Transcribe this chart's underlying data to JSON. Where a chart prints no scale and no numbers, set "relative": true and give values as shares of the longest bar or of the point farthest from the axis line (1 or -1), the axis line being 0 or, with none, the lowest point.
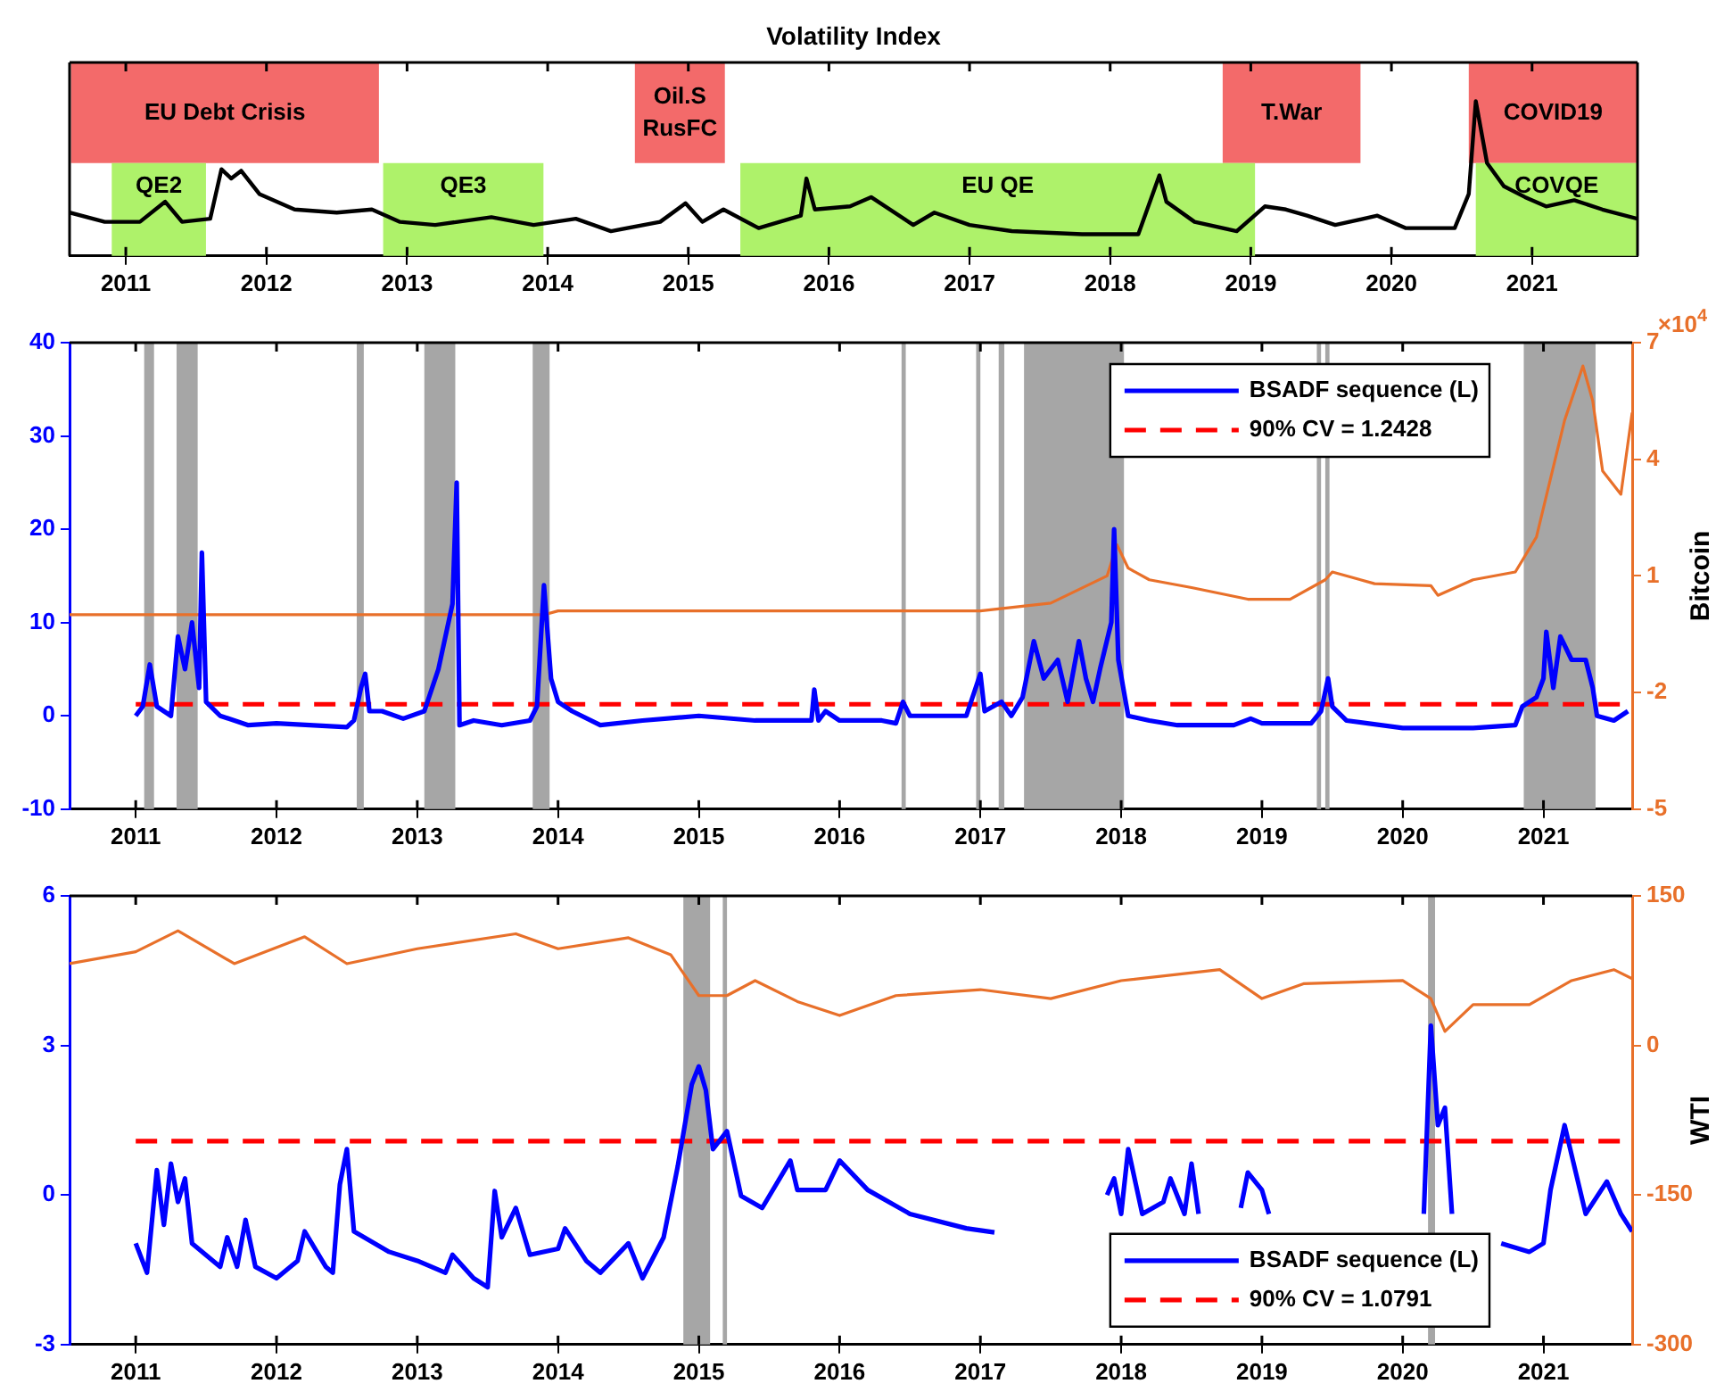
{
  "chart_data": [
    {
      "type": "line",
      "title": "Volatility Index",
      "relative": true,
      "xlim": [
        2010.6,
        2021.75
      ],
      "xticks": [
        2011,
        2012,
        2013,
        2014,
        2015,
        2016,
        2017,
        2018,
        2019,
        2020,
        2021
      ],
      "color": "#000000",
      "x": [
        2010.6,
        2010.85,
        2011.1,
        2011.28,
        2011.4,
        2011.6,
        2011.68,
        2011.75,
        2011.82,
        2011.95,
        2012.2,
        2012.5,
        2012.75,
        2012.95,
        2013.2,
        2013.6,
        2013.9,
        2014.2,
        2014.45,
        2014.8,
        2014.98,
        2015.1,
        2015.25,
        2015.5,
        2015.8,
        2015.84,
        2015.9,
        2016.15,
        2016.3,
        2016.6,
        2016.75,
        2017.0,
        2017.3,
        2017.8,
        2018.2,
        2018.35,
        2018.4,
        2018.6,
        2018.9,
        2019.1,
        2019.25,
        2019.4,
        2019.6,
        2019.9,
        2020.1,
        2020.45,
        2020.55,
        2020.6,
        2020.68,
        2020.8,
        2020.95,
        2021.1,
        2021.3,
        2021.5,
        2021.75
      ],
      "values": [
        0.28,
        0.22,
        0.22,
        0.35,
        0.22,
        0.24,
        0.56,
        0.5,
        0.55,
        0.4,
        0.3,
        0.28,
        0.3,
        0.22,
        0.2,
        0.25,
        0.2,
        0.24,
        0.16,
        0.22,
        0.34,
        0.22,
        0.3,
        0.18,
        0.26,
        0.5,
        0.3,
        0.32,
        0.38,
        0.2,
        0.28,
        0.2,
        0.16,
        0.14,
        0.14,
        0.52,
        0.35,
        0.22,
        0.16,
        0.32,
        0.3,
        0.26,
        0.2,
        0.26,
        0.18,
        0.18,
        0.4,
        1,
        0.6,
        0.45,
        0.38,
        0.32,
        0.36,
        0.3,
        0.24
      ],
      "bands": [
        {
          "axis": "x",
          "from": 2010.61,
          "to": 2012.8,
          "label": "EU Debt Crisis",
          "color": "#f36a6a"
        },
        {
          "axis": "x",
          "from": 2014.62,
          "to": 2015.26,
          "label": "Oil.S RusFC",
          "color": "#f36a6a"
        },
        {
          "axis": "x",
          "from": 2018.8,
          "to": 2019.78,
          "label": "T.War",
          "color": "#f36a6a"
        },
        {
          "axis": "x",
          "from": 2020.55,
          "to": 2021.75,
          "label": "COVID19",
          "color": "#f36a6a"
        },
        {
          "axis": "x",
          "from": 2010.9,
          "to": 2011.57,
          "label": "QE2",
          "color": "#aef26a"
        },
        {
          "axis": "x",
          "from": 2012.83,
          "to": 2013.97,
          "label": "QE3",
          "color": "#aef26a"
        },
        {
          "axis": "x",
          "from": 2015.37,
          "to": 2019.03,
          "label": "EU QE",
          "color": "#aef26a"
        },
        {
          "axis": "x",
          "from": 2020.6,
          "to": 2021.75,
          "label": "COVQE",
          "color": "#aef26a"
        }
      ]
    },
    {
      "type": "line",
      "y2label": "Bitcoin",
      "annotations": [
        "×10$^{4}$"
      ],
      "legend": "top right",
      "xlim": [
        2010.53,
        2021.63
      ],
      "xticks": [
        2011,
        2012,
        2013,
        2014,
        2015,
        2016,
        2017,
        2018,
        2019,
        2020,
        2021
      ],
      "ylim": [
        -10,
        40
      ],
      "yticks": [
        -10,
        0,
        10,
        20,
        30,
        40
      ],
      "y2lim": [
        -5,
        7
      ],
      "y2ticks": [
        -5,
        -2,
        1,
        4,
        7
      ],
      "bands": [
        {
          "axis": "x",
          "from": 2011.06,
          "to": 2011.13,
          "color": "#a6a6a6"
        },
        {
          "axis": "x",
          "from": 2011.29,
          "to": 2011.44,
          "color": "#a6a6a6"
        },
        {
          "axis": "x",
          "from": 2012.57,
          "to": 2012.62,
          "color": "#a6a6a6"
        },
        {
          "axis": "x",
          "from": 2013.05,
          "to": 2013.27,
          "color": "#a6a6a6"
        },
        {
          "axis": "x",
          "from": 2013.82,
          "to": 2013.94,
          "color": "#a6a6a6"
        },
        {
          "axis": "x",
          "from": 2016.44,
          "to": 2016.47,
          "color": "#a6a6a6"
        },
        {
          "axis": "x",
          "from": 2016.97,
          "to": 2017.0,
          "color": "#a6a6a6"
        },
        {
          "axis": "x",
          "from": 2017.13,
          "to": 2017.17,
          "color": "#a6a6a6"
        },
        {
          "axis": "x",
          "from": 2017.31,
          "to": 2018.02,
          "color": "#a6a6a6"
        },
        {
          "axis": "x",
          "from": 2019.39,
          "to": 2019.42,
          "color": "#a6a6a6"
        },
        {
          "axis": "x",
          "from": 2019.45,
          "to": 2019.48,
          "color": "#a6a6a6"
        },
        {
          "axis": "x",
          "from": 2020.86,
          "to": 2021.37,
          "color": "#a6a6a6"
        }
      ],
      "series": [
        {
          "color": "#e8702a",
          "axis": "y2",
          "x": [
            2010.53,
            2013.9,
            2014.0,
            2016.5,
            2017.0,
            2017.5,
            2017.9,
            2017.97,
            2018.05,
            2018.2,
            2018.5,
            2018.9,
            2019.2,
            2019.45,
            2019.5,
            2019.8,
            2020.2,
            2020.25,
            2020.5,
            2020.8,
            2020.95,
            2021.05,
            2021.15,
            2021.28,
            2021.35,
            2021.42,
            2021.55,
            2021.63
          ],
          "values": [
            0,
            0,
            0.1,
            0.1,
            0.1,
            0.3,
            1,
            1.8,
            1.2,
            0.9,
            0.7,
            0.4,
            0.4,
            0.9,
            1.1,
            0.8,
            0.75,
            0.5,
            0.9,
            1.1,
            2,
            3.5,
            5,
            6.4,
            5.5,
            3.7,
            3.1,
            5.2
          ]
        },
        {
          "name": "BSADF sequence (L)",
          "color": "#0000ff",
          "x": [
            2011.0,
            2011.05,
            2011.1,
            2011.15,
            2011.25,
            2011.3,
            2011.35,
            2011.4,
            2011.45,
            2011.47,
            2011.5,
            2011.6,
            2011.8,
            2012.0,
            2012.5,
            2012.55,
            2012.6,
            2012.63,
            2012.66,
            2012.75,
            2012.9,
            2013.05,
            2013.15,
            2013.25,
            2013.28,
            2013.3,
            2013.4,
            2013.6,
            2013.8,
            2013.85,
            2013.9,
            2013.95,
            2014.0,
            2014.1,
            2014.3,
            2014.6,
            2015.0,
            2015.4,
            2015.8,
            2015.82,
            2015.85,
            2015.9,
            2016.0,
            2016.3,
            2016.4,
            2016.45,
            2016.5,
            2016.9,
            2017.0,
            2017.03,
            2017.15,
            2017.22,
            2017.3,
            2017.38,
            2017.45,
            2017.55,
            2017.62,
            2017.7,
            2017.75,
            2017.8,
            2017.85,
            2017.93,
            2017.95,
            2017.98,
            2018.05,
            2018.2,
            2018.4,
            2018.8,
            2018.92,
            2019.0,
            2019.35,
            2019.42,
            2019.47,
            2019.5,
            2019.6,
            2020.0,
            2020.5,
            2020.8,
            2020.85,
            2020.95,
            2021.0,
            2021.02,
            2021.07,
            2021.12,
            2021.2,
            2021.3,
            2021.35,
            2021.38,
            2021.5,
            2021.6
          ],
          "values": [
            0,
            1,
            5.5,
            1,
            0,
            8.5,
            5,
            10,
            3,
            17.5,
            1.5,
            0,
            -1,
            -0.8,
            -1.2,
            -0.5,
            3,
            4.5,
            0.5,
            0.5,
            -0.3,
            0.5,
            5,
            12,
            25,
            -1,
            -0.5,
            -1,
            -0.5,
            1,
            14,
            4,
            1.5,
            0.5,
            -1,
            -0.5,
            0,
            -0.5,
            -0.5,
            2.8,
            -0.5,
            0.5,
            -0.5,
            -0.5,
            -0.8,
            1.5,
            0,
            0,
            4.5,
            0.5,
            1.5,
            0,
            2,
            8,
            4,
            6,
            1.5,
            8,
            4,
            1.5,
            5,
            10,
            20,
            6,
            0,
            -0.5,
            -1,
            -1,
            -0.3,
            -0.8,
            -0.8,
            0.5,
            4,
            1,
            -0.5,
            -1.3,
            -1.3,
            -1,
            1,
            2,
            4,
            9,
            3,
            8.5,
            6,
            6,
            3,
            0,
            -0.5,
            0.5
          ]
        },
        {
          "name": "90% CV = 1.2428",
          "color": "#ff0000",
          "line_style": "dashed",
          "x": [
            2011.0,
            2021.63
          ],
          "values": [
            1.2428,
            1.2428
          ]
        }
      ]
    },
    {
      "type": "line",
      "y2label": "WTI",
      "legend": "bottom right",
      "xlim": [
        2010.53,
        2021.63
      ],
      "xticks": [
        2011,
        2012,
        2013,
        2014,
        2015,
        2016,
        2017,
        2018,
        2019,
        2020,
        2021
      ],
      "ylim": [
        -3,
        6
      ],
      "yticks": [
        -3,
        0,
        3,
        6
      ],
      "y2lim": [
        -300,
        150
      ],
      "y2ticks": [
        -300,
        -150,
        0,
        150
      ],
      "bands": [
        {
          "axis": "x",
          "from": 2014.89,
          "to": 2015.08,
          "color": "#a6a6a6"
        },
        {
          "axis": "x",
          "from": 2015.17,
          "to": 2015.2,
          "color": "#a6a6a6"
        },
        {
          "axis": "x",
          "from": 2020.18,
          "to": 2020.23,
          "color": "#a6a6a6"
        }
      ],
      "series": [
        {
          "color": "#e8702a",
          "axis": "y2",
          "x": [
            2010.53,
            2011.0,
            2011.3,
            2011.7,
            2012.2,
            2012.5,
            2013.0,
            2013.7,
            2014.0,
            2014.5,
            2014.8,
            2015.0,
            2015.2,
            2015.4,
            2015.7,
            2016.0,
            2016.4,
            2017.0,
            2017.5,
            2018.0,
            2018.7,
            2019.0,
            2019.3,
            2020.0,
            2020.2,
            2020.3,
            2020.5,
            2020.9,
            2021.2,
            2021.5,
            2021.63
          ],
          "values": [
            82,
            94,
            115,
            82,
            109,
            82,
            97,
            112,
            97,
            108,
            91,
            50,
            50,
            65,
            44,
            30,
            50,
            56,
            47,
            65,
            76,
            47,
            62,
            65,
            47,
            14,
            41,
            41,
            65,
            76,
            67
          ]
        },
        {
          "name": "BSADF sequence (L)",
          "color": "#0000ff",
          "x": [
            2011.0,
            2011.08,
            2011.15,
            2011.2,
            2011.25,
            2011.3,
            2011.35,
            2011.4,
            2011.6,
            2011.65,
            2011.72,
            2011.78,
            2011.85,
            2012.0,
            2012.15,
            2012.2,
            2012.35,
            2012.4,
            2012.45,
            2012.5,
            2012.55,
            2012.8,
            2013.0,
            2013.2,
            2013.25,
            2013.4,
            2013.5,
            2013.55,
            2013.6,
            2013.7,
            2013.8,
            2014.0,
            2014.05,
            2014.2,
            2014.3,
            2014.5,
            2014.6,
            2014.75,
            2014.85,
            2014.95,
            2015.0,
            2015.05,
            2015.1,
            2015.2,
            2015.3,
            2015.45,
            2015.65,
            2015.7,
            2015.9,
            2016.0,
            2016.2,
            2016.5,
            2016.9,
            2017.1,
            2017.5,
            2017.9,
            2017.95,
            2018.0,
            2018.05,
            2018.15,
            2018.3,
            2018.35,
            2018.45,
            2018.5,
            2018.55,
            2018.7,
            2018.85,
            2018.9,
            2019.0,
            2019.05,
            2019.6,
            2020.15,
            2020.2,
            2020.25,
            2020.3,
            2020.35,
            2020.5,
            2020.7,
            2020.9,
            2021.0,
            2021.05,
            2021.15,
            2021.2,
            2021.3,
            2021.45,
            2021.55,
            2021.63
          ],
          "values": [
            -0.97,
            -1.56,
            0.5,
            -0.6,
            0.63,
            -0.14,
            0.33,
            -0.97,
            -1.44,
            -0.85,
            -1.44,
            -0.5,
            -1.44,
            -1.67,
            -1.32,
            -0.73,
            -1.44,
            -1.56,
            0.21,
            0.92,
            -0.73,
            -1.14,
            -1.32,
            -1.56,
            -1.2,
            -1.67,
            -1.85,
            0.08,
            -0.85,
            -0.26,
            -1.2,
            -1.08,
            -0.67,
            -1.32,
            -1.56,
            -0.97,
            -1.67,
            -0.85,
            0.57,
            2.22,
            2.58,
            2.1,
            0.92,
            1.28,
            -0.02,
            -0.26,
            0.69,
            0.1,
            0.1,
            0.69,
            0.1,
            -0.38,
            -0.67,
            -0.75,
            null,
            0,
            0.33,
            -0.38,
            0.92,
            -0.38,
            -0.14,
            0.33,
            -0.38,
            0.63,
            -0.38,
            null,
            -0.26,
            0.45,
            0.1,
            -0.38,
            null,
            -0.38,
            3.4,
            1.4,
            1.75,
            -0.38,
            null,
            -0.97,
            -1.14,
            -0.97,
            0.1,
            1.4,
            0.8,
            -0.38,
            0.27,
            -0.38,
            -0.73
          ]
        },
        {
          "name": "90% CV = 1.0791",
          "color": "#ff0000",
          "line_style": "dashed",
          "x": [
            2011.0,
            2021.63
          ],
          "values": [
            1.0791,
            1.0791
          ]
        }
      ]
    }
  ]
}
